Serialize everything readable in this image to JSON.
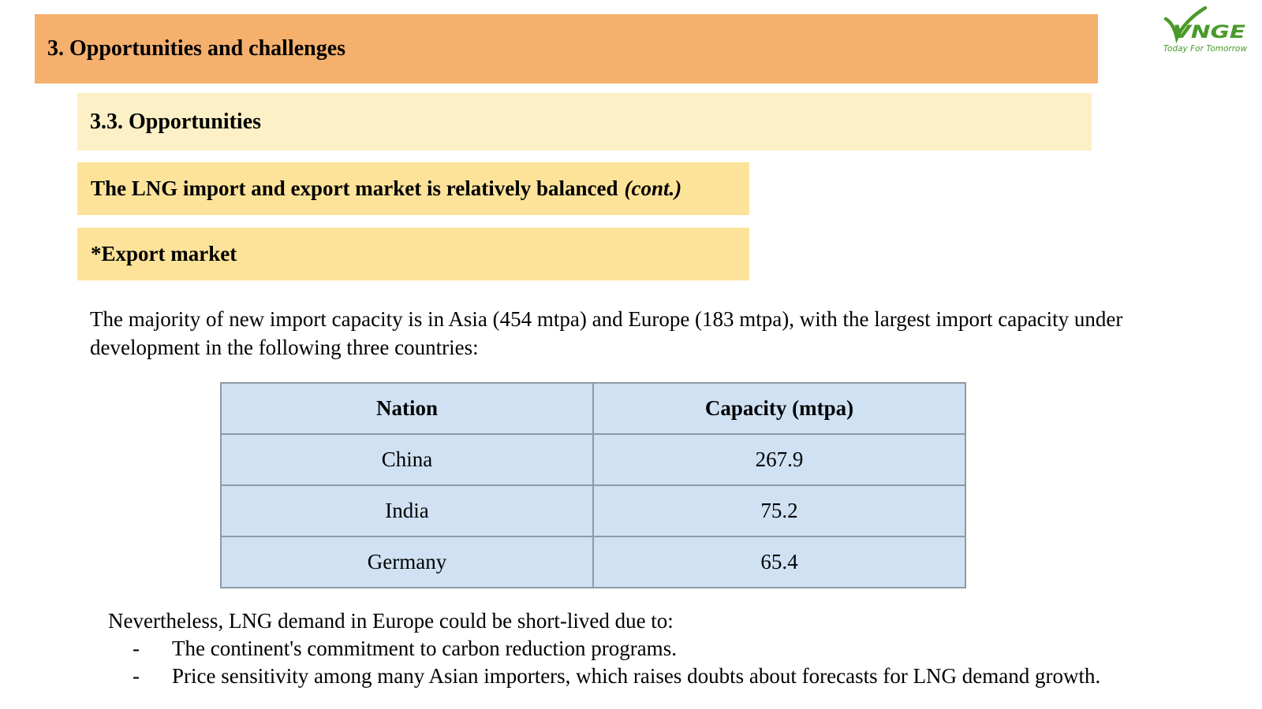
{
  "header": {
    "section_title": "3. Opportunities and challenges",
    "subsection_title": "3.3. Opportunities",
    "topic_title": "The LNG import and export market is relatively balanced",
    "topic_suffix": "(cont.)",
    "market_label": "*Export market"
  },
  "logo": {
    "brand": "VNGE",
    "tagline": "Today For Tomorrow",
    "color": "#4a9a2a"
  },
  "intro_text": "The majority of new import capacity is in Asia (454 mtpa) and Europe (183 mtpa), with the largest import capacity under development in the following three countries:",
  "table": {
    "headers": [
      "Nation",
      "Capacity (mtpa)"
    ],
    "rows": [
      [
        "China",
        "267.9"
      ],
      [
        "India",
        "75.2"
      ],
      [
        "Germany",
        "65.4"
      ]
    ]
  },
  "note": {
    "lead": "Nevertheless, LNG demand in Europe could be short-lived due to:",
    "bullets": [
      "The continent's commitment to carbon reduction programs.",
      "Price sensitivity among many Asian importers, which raises doubts about forecasts for LNG demand growth."
    ]
  },
  "colors": {
    "section_bar": "#f5b06d",
    "subsection_bar": "#fdf0c6",
    "topic_bar": "#fde39a",
    "table_fill": "#cfe1f3"
  }
}
